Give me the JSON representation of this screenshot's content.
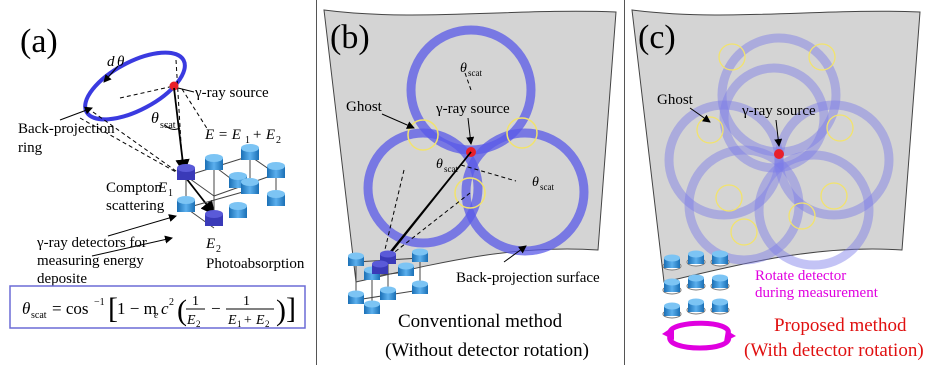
{
  "panel_a": {
    "label": "(a)",
    "source": "γ-ray source",
    "ring_l1": "Back-projection",
    "ring_l2": "ring",
    "d": "d",
    "theta": "θ",
    "scat": "scat",
    "energy": "E = E",
    "energy_sub1": "1",
    "energy_plus": "+ E",
    "energy_sub2": "2",
    "compton_l1": "Compton",
    "compton_l2": "scattering",
    "e1": "E",
    "e1_sub": "1",
    "e2": "E",
    "e2_sub": "2",
    "det_l1": "γ-ray detectors for",
    "det_l2": "measuring energy",
    "det_l3": "deposite",
    "photo": "Photoabsorption",
    "formula_lhs": "θ",
    "formula_lhs_sub": "scat",
    "formula_eq": "= cos",
    "formula_exp": "−1",
    "formula_mid": "1 − m",
    "formula_e": "e",
    "formula_c": "c",
    "formula_c_exp": "2",
    "formula_one": "1",
    "formula_e2": "E",
    "formula_e2_sub": "2",
    "formula_minus": "−",
    "formula_den_a": "E",
    "formula_den_a_sub": "1",
    "formula_den_b": "+ E",
    "formula_den_b_sub": "2"
  },
  "panel_b": {
    "label": "(b)",
    "ghost": "Ghost",
    "source": "γ-ray source",
    "theta": "θ",
    "scat": "scat",
    "surface": "Back-projection surface",
    "caption_1": "Conventional method",
    "caption_2": "(Without detector rotation)"
  },
  "panel_c": {
    "label": "(c)",
    "ghost": "Ghost",
    "source": "γ-ray source",
    "rotate_1": "Rotate detector",
    "rotate_2": "during measurement",
    "caption_1": "Proposed method",
    "caption_2": "(With detector rotation)"
  },
  "colors": {
    "ring_blue": "#4a4ae0",
    "ring_soft": "#8c8ce8",
    "ghost_yellow": "#f2e36c",
    "source_red": "#e8202a",
    "magenta": "#e000e0",
    "caption_red": "#e01010",
    "surface_gray": "#d4d4d4",
    "detector_blue": "#2f8fd8"
  }
}
